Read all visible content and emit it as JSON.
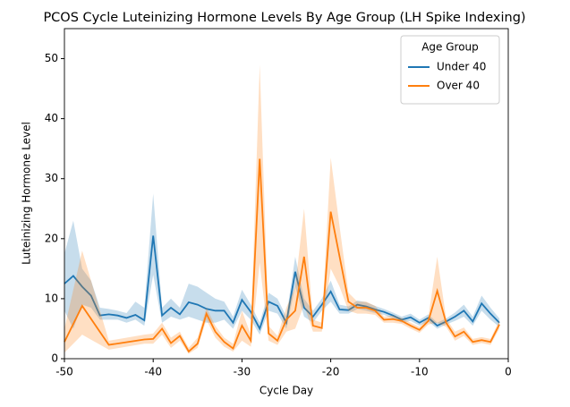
{
  "chart_data": {
    "type": "line",
    "title": "PCOS Cycle Luteinizing Hormone Levels By Age Group (LH Spike Indexing)",
    "x_label": "Cycle Day",
    "y_label": "Luteinizing Hormone Level",
    "xlim": [
      -50,
      0
    ],
    "xticks": [
      -50,
      -40,
      -30,
      -20,
      -10,
      0
    ],
    "ylim": [
      0,
      55
    ],
    "yticks": [
      0,
      10,
      20,
      30,
      40,
      50
    ],
    "legend_title": "Age Group",
    "legend_loc": "upper right",
    "grid": false,
    "series": [
      {
        "name": "Under 40",
        "color": "#1f77b4",
        "x": [
          -50,
          -49,
          -48,
          -47,
          -46,
          -45,
          -44,
          -43,
          -42,
          -41,
          -40,
          -39,
          -38,
          -37,
          -36,
          -35,
          -34,
          -33,
          -32,
          -31,
          -30,
          -29,
          -28,
          -27,
          -26,
          -25,
          -24,
          -23,
          -22,
          -21,
          -20,
          -19,
          -18,
          -17,
          -16,
          -15,
          -14,
          -13,
          -12,
          -11,
          -10,
          -9,
          -8,
          -7,
          -6,
          -5,
          -4,
          -3,
          -2,
          -1
        ],
        "values": [
          12.5,
          13.8,
          12,
          10.5,
          7.2,
          7.4,
          7.2,
          6.8,
          7.3,
          6.4,
          20.5,
          7.2,
          8.5,
          7.4,
          9.4,
          9.0,
          8.3,
          8.0,
          8.0,
          6.0,
          9.8,
          7.8,
          5.0,
          9.5,
          8.8,
          6.0,
          14.5,
          8.5,
          7.0,
          9.0,
          11.2,
          8.2,
          8.1,
          9.0,
          8.7,
          8.2,
          7.8,
          7.2,
          6.5,
          6.9,
          6.0,
          6.8,
          5.5,
          6.2,
          7.0,
          8.0,
          6.2,
          9.2,
          7.5,
          6.0
        ],
        "lower": [
          8,
          5,
          9,
          8.5,
          6.5,
          6.5,
          6.5,
          6,
          6.5,
          5.5,
          14,
          6,
          7,
          6.5,
          7,
          6.5,
          6,
          6,
          6.5,
          5,
          8,
          6.5,
          4,
          8,
          7.5,
          5,
          12,
          7,
          6,
          8,
          9.5,
          7.5,
          7.5,
          8.3,
          8,
          7.6,
          7.3,
          6.7,
          6,
          6.3,
          5.5,
          6.2,
          5,
          5.7,
          6.3,
          7,
          5.5,
          8,
          6.5,
          5.3
        ],
        "upper": [
          17.5,
          23,
          15,
          13,
          8.5,
          8.3,
          8,
          7.6,
          9.5,
          8.5,
          27.5,
          8.5,
          10,
          8.5,
          12.5,
          12,
          11,
          10,
          9.5,
          7,
          11.5,
          9,
          6,
          11,
          10,
          7,
          17,
          10,
          8,
          10,
          13,
          9,
          8.7,
          9.7,
          9.4,
          8.8,
          8.3,
          7.7,
          7,
          7.5,
          6.5,
          7.4,
          6,
          6.7,
          7.7,
          9,
          7,
          10.5,
          8.5,
          6.7
        ]
      },
      {
        "name": "Over 40",
        "color": "#ff7f0e",
        "x": [
          -50,
          -48,
          -45,
          -41,
          -40,
          -39,
          -38,
          -37,
          -36,
          -35,
          -34,
          -33,
          -32,
          -31,
          -30,
          -29,
          -28,
          -27,
          -26,
          -25,
          -24,
          -23,
          -22,
          -21,
          -20,
          -19,
          -18,
          -17,
          -16,
          -15,
          -14,
          -13,
          -12,
          -11,
          -10,
          -9,
          -8,
          -7,
          -6,
          -5,
          -4,
          -3,
          -2,
          -1
        ],
        "values": [
          2.8,
          8.8,
          2.3,
          3.2,
          3.3,
          5.0,
          2.6,
          3.8,
          1.2,
          2.5,
          7.5,
          4.5,
          2.8,
          1.7,
          5.5,
          3.0,
          33.3,
          4.2,
          3.0,
          6.5,
          8.0,
          17.0,
          5.5,
          5.1,
          24.5,
          17.0,
          9.5,
          8.5,
          8.5,
          8.0,
          6.5,
          6.6,
          6.3,
          5.5,
          4.8,
          6.3,
          11.3,
          6.0,
          3.7,
          4.5,
          2.8,
          3.1,
          2.8,
          5.7
        ],
        "lower": [
          1,
          4,
          1.5,
          2.5,
          2.5,
          4,
          1.8,
          3,
          0.8,
          1.8,
          6.5,
          3.5,
          2,
          1.2,
          3,
          2,
          16,
          3,
          2.3,
          4.5,
          5,
          9,
          4.5,
          4.5,
          15,
          12,
          8,
          7.5,
          7.5,
          7.3,
          6,
          6,
          5.8,
          5,
          4.3,
          5.7,
          6,
          5.3,
          3,
          3.8,
          2.3,
          2.6,
          2.3,
          5
        ],
        "upper": [
          5,
          18,
          3,
          4,
          4.2,
          6,
          3.5,
          4.5,
          1.8,
          3.5,
          8.5,
          5.5,
          3.5,
          2.5,
          8,
          4,
          49,
          5.5,
          3.8,
          8.5,
          12,
          25,
          6.5,
          6,
          33.5,
          22,
          11,
          9.5,
          9.5,
          8.8,
          7,
          7.2,
          6.8,
          6,
          5.3,
          7,
          17,
          6.7,
          4.5,
          5.2,
          3.3,
          3.6,
          3.3,
          6.4
        ]
      }
    ]
  }
}
